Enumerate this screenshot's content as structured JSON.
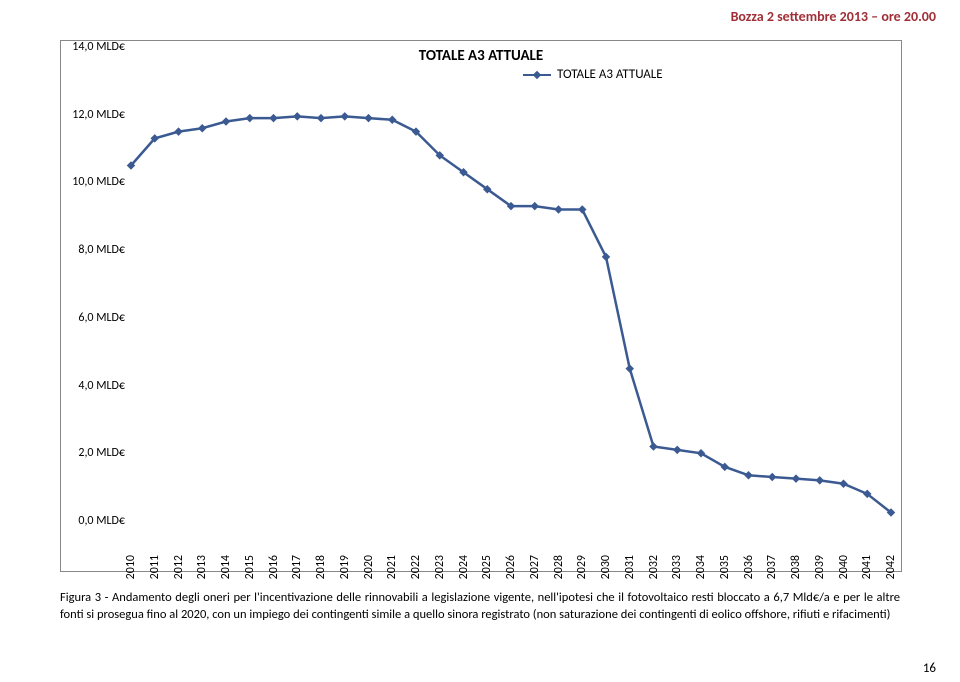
{
  "header": {
    "draft_text": "Bozza 2 settembre 2013 – ore 20.00",
    "draft_color": "#9f2f37"
  },
  "chart": {
    "type": "line",
    "title": "TOTALE A3 ATTUALE",
    "title_fontsize": 15,
    "legend_label": "TOTALE A3 ATTUALE",
    "series_color": "#3b5a92",
    "marker_style": "diamond",
    "marker_size": 6,
    "line_width": 2.5,
    "background_color": "#ffffff",
    "border_color": "#888888",
    "ylabel_suffix": " MLD€",
    "ylim": [
      0,
      14
    ],
    "ytick_step": 2,
    "yticks": [
      "0,0 MLD€",
      "2,0 MLD€",
      "4,0 MLD€",
      "6,0 MLD€",
      "8,0 MLD€",
      "10,0 MLD€",
      "12,0 MLD€",
      "14,0 MLD€"
    ],
    "xlim": [
      2010,
      2042
    ],
    "xticks": [
      "2010",
      "2011",
      "2012",
      "2013",
      "2014",
      "2015",
      "2016",
      "2017",
      "2018",
      "2019",
      "2020",
      "2021",
      "2022",
      "2023",
      "2024",
      "2025",
      "2026",
      "2027",
      "2028",
      "2029",
      "2030",
      "2031",
      "2032",
      "2033",
      "2034",
      "2035",
      "2036",
      "2037",
      "2038",
      "2039",
      "2040",
      "2041",
      "2042"
    ],
    "values": [
      10.5,
      11.3,
      11.5,
      11.6,
      11.8,
      11.9,
      11.9,
      11.95,
      11.9,
      11.95,
      11.9,
      11.85,
      11.5,
      10.8,
      10.3,
      9.8,
      9.3,
      9.3,
      9.2,
      9.2,
      7.8,
      4.5,
      2.2,
      2.1,
      2.0,
      1.6,
      1.35,
      1.3,
      1.25,
      1.2,
      1.1,
      0.8,
      0.25
    ],
    "axis_label_fontsize": 12,
    "axis_label_color": "#000000"
  },
  "caption": {
    "text": "Figura 3 - Andamento degli oneri per l'incentivazione delle rinnovabili a legislazione vigente, nell'ipotesi che il fotovoltaico resti bloccato a 6,7 Mld€/a e per le altre fonti si prosegua fino al 2020, con un impiego dei contingenti simile a quello sinora registrato (non saturazione dei contingenti di eolico offshore, rifiuti e rifacimenti)"
  },
  "pagenum": {
    "value": "16"
  }
}
